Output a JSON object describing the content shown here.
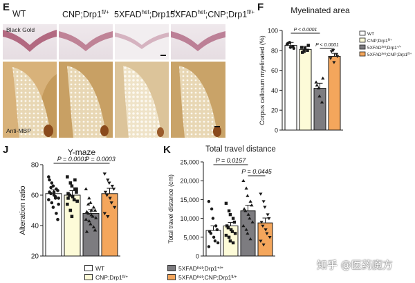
{
  "panel_e": {
    "letter": "E",
    "columns": [
      "WT",
      "CNP;Drp1",
      "5XFAD",
      ";Drp1",
      "5XFAD",
      ";CNP;Drp1"
    ],
    "col_sup": [
      "fl/+",
      "het",
      "+/+",
      "het",
      "fl/+"
    ],
    "stain_top": "Black Gold",
    "stain_bottom": "Anti-MBP"
  },
  "chart_data": [
    {
      "panel": "F",
      "type": "bar",
      "title": "Myelinated area",
      "ylabel": "Corpus callosum myelinated (%)",
      "ylim": [
        0,
        100
      ],
      "yticks": [
        0,
        20,
        40,
        60,
        80,
        100
      ],
      "categories": [
        "WT",
        "CNP;Drp1fl/+",
        "5XFADhet;Drp1+/+",
        "5XFADhet;CNP;Drp1fl/+"
      ],
      "values": [
        85,
        81,
        42,
        74
      ],
      "errors": [
        3,
        3,
        5,
        3
      ],
      "points": [
        [
          86,
          88,
          83,
          84,
          82,
          87
        ],
        [
          83,
          79,
          82,
          80,
          85,
          78
        ],
        [
          48,
          42,
          34,
          28,
          52,
          45
        ],
        [
          72,
          80,
          68,
          76,
          74,
          79
        ]
      ],
      "colors": [
        "#ffffff",
        "#fdfbd8",
        "#7d7c80",
        "#f4a65c"
      ],
      "legend": [
        "WT",
        "CNP;Drp1",
        "5XFAD",
        ";Drp1",
        "5XFAD",
        ";CNP;Drp1"
      ],
      "legend_sup": [
        "fl/+",
        "het",
        "+/+",
        "het",
        "fl/+"
      ],
      "legend_position": "right",
      "annotations": [
        {
          "text": "P < 0.0001",
          "from": 0,
          "to": 2
        },
        {
          "text": "P < 0.0001",
          "from": 2,
          "to": 3
        }
      ]
    },
    {
      "panel": "J",
      "type": "bar",
      "title": "Y-maze",
      "ylabel": "Alteration ratio",
      "ylim": [
        20,
        80
      ],
      "yticks": [
        20,
        40,
        60,
        80
      ],
      "categories": [
        "WT",
        "CNP;Drp1fl/+",
        "5XFADhet;Drp1+/+",
        "5XFADhet;CNP;Drp1fl/+"
      ],
      "values": [
        61,
        60,
        48,
        61
      ],
      "errors": [
        2.5,
        3,
        2.5,
        3.5
      ],
      "points": [
        [
          72,
          68,
          66,
          64,
          63,
          62,
          61,
          60,
          59,
          58,
          57,
          55,
          52,
          48,
          44,
          70,
          65,
          62,
          58,
          54
        ],
        [
          72,
          68,
          66,
          64,
          62,
          61,
          60,
          59,
          57,
          56,
          54,
          50,
          46,
          70,
          64,
          58
        ],
        [
          64,
          58,
          55,
          52,
          50,
          49,
          48,
          47,
          46,
          45,
          44,
          43,
          41,
          39,
          37,
          36,
          54,
          50
        ],
        [
          74,
          70,
          68,
          66,
          64,
          62,
          60,
          58,
          55,
          52,
          48,
          46
        ]
      ],
      "colors": [
        "#ffffff",
        "#fdfbd8",
        "#7d7c80",
        "#f4a65c"
      ],
      "annotations": [
        {
          "text": "P = 0.0001",
          "from": 0,
          "to": 2
        },
        {
          "text": "P = 0.0003",
          "from": 2,
          "to": 3
        }
      ]
    },
    {
      "panel": "K",
      "type": "bar",
      "title": "Total travel distance",
      "ylabel": "Total travel distance (cm)",
      "ylim": [
        0,
        25000
      ],
      "yticks": [
        0,
        5000,
        10000,
        15000,
        20000,
        25000
      ],
      "ytick_labels": [
        "0",
        "5,000",
        "10,000",
        "15,000",
        "20,000",
        "25,000"
      ],
      "categories": [
        "WT",
        "CNP;Drp1fl/+",
        "5XFADhet;Drp1+/+",
        "5XFADhet;CNP;Drp1fl/+"
      ],
      "values": [
        6800,
        8000,
        12000,
        8800
      ],
      "errors": [
        1200,
        900,
        1500,
        1300
      ],
      "points": [
        [
          14500,
          12500,
          10000,
          8000,
          7000,
          6500,
          6000,
          5000,
          4000,
          3500,
          2500
        ],
        [
          14000,
          12000,
          11000,
          10000,
          9000,
          8000,
          7500,
          7000,
          6500,
          6000,
          5500,
          5000,
          4000,
          3500
        ],
        [
          20000,
          18000,
          16000,
          14500,
          13500,
          12500,
          12000,
          11000,
          10000,
          9000,
          8000,
          7000,
          6000,
          4500
        ],
        [
          16500,
          14500,
          13000,
          11000,
          10000,
          9000,
          8000,
          7000,
          6000,
          5000,
          4000,
          3000
        ]
      ],
      "colors": [
        "#ffffff",
        "#fdfbd8",
        "#7d7c80",
        "#f4a65c"
      ],
      "annotations": [
        {
          "text": "P = 0.0157",
          "from": 0,
          "to": 2
        },
        {
          "text": "P = 0.0445",
          "from": 2,
          "to": 3
        }
      ]
    }
  ],
  "legend_bottom": {
    "items": [
      "WT",
      "CNP;Drp1",
      "5XFAD",
      ";Drp1",
      "5XFAD",
      ";CNP;Drp1"
    ],
    "sups": [
      "fl/+",
      "het",
      "+/+",
      "het",
      "fl/+"
    ],
    "colors": [
      "#ffffff",
      "#fdfbd8",
      "#7d7c80",
      "#f4a65c"
    ]
  },
  "panel_letters": {
    "F": "F",
    "J": "J",
    "K": "K"
  },
  "watermark": "知乎 @医药魔方"
}
